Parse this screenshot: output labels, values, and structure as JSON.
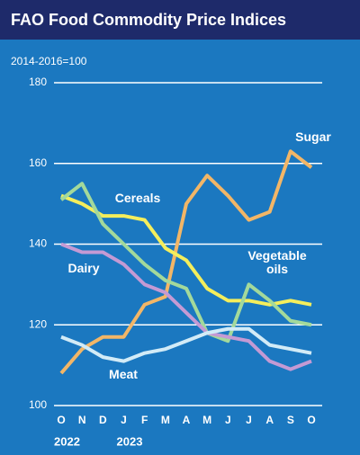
{
  "chart_data": {
    "type": "line",
    "title": "FAO Food Commodity Price Indices",
    "subtitle": "2014-2016=100",
    "categories": [
      "O",
      "N",
      "D",
      "J",
      "F",
      "M",
      "A",
      "M",
      "J",
      "J",
      "A",
      "S",
      "O"
    ],
    "year_labels": [
      "2022",
      "2023"
    ],
    "ylim": [
      100,
      180
    ],
    "yticks": [
      100,
      120,
      140,
      160,
      180
    ],
    "grid": true,
    "series": [
      {
        "name": "Sugar",
        "color": "#f2b667",
        "values": [
          108,
          114,
          117,
          117,
          125,
          127,
          150,
          157,
          152,
          146,
          148,
          163,
          159
        ]
      },
      {
        "name": "Cereals",
        "color": "#f4ee5c",
        "values": [
          152,
          150,
          147,
          147,
          146,
          139,
          136,
          129,
          126,
          126,
          125,
          126,
          125
        ]
      },
      {
        "name": "Vegetable oils",
        "color": "#a3d99b",
        "values": [
          151,
          155,
          145,
          140,
          135,
          131,
          129,
          118,
          116,
          130,
          126,
          121,
          120
        ]
      },
      {
        "name": "Dairy",
        "color": "#c49ad4",
        "values": [
          140,
          138,
          138,
          135,
          130,
          128,
          123,
          118,
          117,
          116,
          111,
          109,
          111
        ]
      },
      {
        "name": "Meat",
        "color": "#d2ebf7",
        "values": [
          117,
          115,
          112,
          111,
          113,
          114,
          116,
          118,
          119,
          119,
          115,
          114,
          113
        ]
      }
    ]
  }
}
